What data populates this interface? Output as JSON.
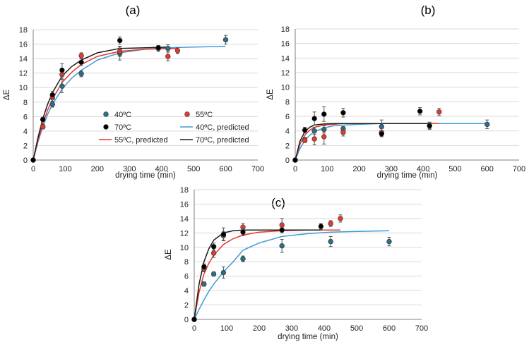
{
  "colors": {
    "c40": "#2e6e86",
    "c55": "#e23a2c",
    "c70": "#000000",
    "c40_line": "#3f9bd8",
    "c55_line": "#e8362b",
    "c70_line": "#1a1a1a"
  },
  "chart_data": [
    {
      "type": "scatter",
      "panel_label": "(a)",
      "title": "",
      "xlabel": "drying time (min)",
      "ylabel": "ΔE",
      "xlim": [
        0,
        700
      ],
      "ylim": [
        0,
        18
      ],
      "xticks": [
        0,
        100,
        200,
        300,
        400,
        500,
        600,
        700
      ],
      "yticks": [
        0,
        2,
        4,
        6,
        8,
        10,
        12,
        14,
        16,
        18
      ],
      "grid": true,
      "legend": {
        "placement": "center-right",
        "entries": [
          "40ºC",
          "55ºC",
          "70ºC",
          "40ºC, predicted",
          "55ºC, predicted",
          "70ºC, predicted"
        ]
      },
      "series": [
        {
          "name": "40ºC",
          "kind": "points",
          "x": [
            0,
            30,
            60,
            90,
            150,
            270,
            390,
            420,
            600
          ],
          "values": [
            0,
            4.6,
            7.7,
            10.2,
            11.9,
            14.7,
            15.4,
            15.4,
            16.6
          ],
          "err": [
            0,
            0.3,
            0.4,
            0.9,
            0.4,
            0.9,
            0.4,
            0.5,
            0.6
          ]
        },
        {
          "name": "55ºC",
          "kind": "points",
          "x": [
            0,
            30,
            60,
            90,
            150,
            270,
            420,
            450
          ],
          "values": [
            0,
            4.6,
            8.6,
            11.8,
            14.4,
            15.0,
            14.3,
            15.1
          ],
          "err": [
            0,
            0.3,
            0.5,
            0.6,
            0.4,
            0.7,
            0.6,
            0.4
          ]
        },
        {
          "name": "70ºC",
          "kind": "points",
          "x": [
            0,
            30,
            60,
            90,
            150,
            270,
            390
          ],
          "values": [
            0,
            5.6,
            9.0,
            12.4,
            13.5,
            16.5,
            15.5
          ],
          "err": [
            0,
            0.3,
            0.5,
            0.9,
            0.5,
            0.5,
            0.3
          ]
        },
        {
          "name": "40ºC, predicted",
          "kind": "line",
          "x": [
            0,
            15,
            30,
            45,
            60,
            90,
            120,
            150,
            200,
            270,
            350,
            420,
            500,
            600
          ],
          "values": [
            0,
            2.5,
            4.6,
            6.3,
            7.7,
            9.8,
            11.3,
            12.4,
            13.8,
            14.8,
            15.3,
            15.5,
            15.6,
            15.7
          ]
        },
        {
          "name": "55ºC, predicted",
          "kind": "line",
          "x": [
            0,
            15,
            30,
            45,
            60,
            90,
            120,
            150,
            200,
            270,
            350,
            450
          ],
          "values": [
            0,
            2.7,
            5.0,
            6.9,
            8.4,
            10.7,
            12.1,
            13.2,
            14.3,
            15.0,
            15.3,
            15.4
          ]
        },
        {
          "name": "70ºC, predicted",
          "kind": "line",
          "x": [
            0,
            15,
            30,
            45,
            60,
            90,
            120,
            150,
            200,
            270,
            350,
            420
          ],
          "values": [
            0,
            3.1,
            5.7,
            7.7,
            9.3,
            11.6,
            12.9,
            13.8,
            14.8,
            15.4,
            15.5,
            15.6
          ]
        }
      ]
    },
    {
      "type": "scatter",
      "panel_label": "(b)",
      "title": "",
      "xlabel": "drying time (min)",
      "ylabel": "ΔE",
      "xlim": [
        0,
        700
      ],
      "ylim": [
        0,
        18
      ],
      "xticks": [
        0,
        100,
        200,
        300,
        400,
        500,
        600,
        700
      ],
      "yticks": [
        0,
        2,
        4,
        6,
        8,
        10,
        12,
        14,
        16,
        18
      ],
      "grid": true,
      "series": [
        {
          "name": "40ºC",
          "kind": "points",
          "x": [
            0,
            30,
            60,
            90,
            150,
            270,
            600
          ],
          "values": [
            0,
            2.8,
            4.0,
            4.2,
            4.3,
            4.6,
            4.9
          ],
          "err": [
            0,
            0.3,
            0.5,
            0.5,
            0.3,
            0.9,
            0.6
          ]
        },
        {
          "name": "55ºC",
          "kind": "points",
          "x": [
            0,
            30,
            60,
            90,
            150,
            270,
            420,
            450
          ],
          "values": [
            0,
            2.7,
            2.9,
            3.2,
            3.8,
            3.8,
            4.7,
            6.6
          ],
          "err": [
            0,
            0.3,
            0.8,
            1.0,
            0.5,
            0.5,
            0.5,
            0.5
          ]
        },
        {
          "name": "70ºC",
          "kind": "points",
          "x": [
            0,
            30,
            60,
            90,
            150,
            270,
            390,
            420
          ],
          "values": [
            0,
            4.1,
            5.7,
            6.3,
            6.5,
            3.6,
            6.7,
            4.7
          ],
          "err": [
            0,
            0.4,
            0.9,
            1.0,
            0.6,
            0.4,
            0.5,
            0.4
          ]
        },
        {
          "name": "40ºC, predicted",
          "kind": "line",
          "x": [
            0,
            15,
            30,
            45,
            60,
            90,
            120,
            150,
            200,
            270,
            400,
            600
          ],
          "values": [
            0,
            1.6,
            2.7,
            3.4,
            3.9,
            4.4,
            4.7,
            4.8,
            4.9,
            5.0,
            5.0,
            5.0
          ]
        },
        {
          "name": "55ºC, predicted",
          "kind": "line",
          "x": [
            0,
            15,
            30,
            45,
            60,
            90,
            120,
            150,
            200,
            270,
            450
          ],
          "values": [
            0,
            2.2,
            3.4,
            4.1,
            4.5,
            4.8,
            4.9,
            5.0,
            5.0,
            5.0,
            5.0
          ]
        },
        {
          "name": "70ºC, predicted",
          "kind": "line",
          "x": [
            0,
            15,
            30,
            45,
            60,
            90,
            120,
            150,
            200,
            270,
            420
          ],
          "values": [
            0,
            2.6,
            3.9,
            4.5,
            4.8,
            4.95,
            5.0,
            5.0,
            5.0,
            5.0,
            5.0
          ]
        }
      ]
    },
    {
      "type": "scatter",
      "panel_label": "(c)",
      "title": "",
      "xlabel": "drying time (min)",
      "ylabel": "ΔE",
      "xlim": [
        0,
        700
      ],
      "ylim": [
        0,
        18
      ],
      "xticks": [
        0,
        100,
        200,
        300,
        400,
        500,
        600,
        700
      ],
      "yticks": [
        0,
        2,
        4,
        6,
        8,
        10,
        12,
        14,
        16,
        18
      ],
      "grid": true,
      "series": [
        {
          "name": "40ºC",
          "kind": "points",
          "x": [
            0,
            30,
            60,
            90,
            150,
            270,
            420,
            600
          ],
          "values": [
            0,
            4.9,
            6.3,
            6.5,
            8.4,
            10.2,
            10.8,
            10.8
          ],
          "err": [
            0,
            0.3,
            0.3,
            0.8,
            0.4,
            0.9,
            0.7,
            0.6
          ]
        },
        {
          "name": "55ºC",
          "kind": "points",
          "x": [
            0,
            30,
            60,
            90,
            150,
            270,
            420,
            450
          ],
          "values": [
            0,
            7.0,
            9.2,
            11.6,
            12.8,
            13.1,
            13.3,
            14.0
          ],
          "err": [
            0,
            0.4,
            0.6,
            0.6,
            0.5,
            0.9,
            0.4,
            0.5
          ]
        },
        {
          "name": "70ºC",
          "kind": "points",
          "x": [
            0,
            30,
            60,
            90,
            150,
            270,
            390
          ],
          "values": [
            0,
            7.3,
            10.1,
            11.8,
            12.1,
            12.4,
            12.9
          ],
          "err": [
            0,
            0.4,
            0.5,
            0.9,
            0.5,
            0.4,
            0.4
          ]
        },
        {
          "name": "40ºC, predicted",
          "kind": "line",
          "x": [
            0,
            15,
            30,
            45,
            60,
            90,
            120,
            150,
            200,
            270,
            350,
            420,
            500,
            600
          ],
          "values": [
            0,
            1.4,
            2.7,
            3.9,
            4.9,
            6.6,
            8.0,
            9.6,
            10.6,
            11.5,
            11.9,
            12.1,
            12.2,
            12.3
          ]
        },
        {
          "name": "55ºC, predicted",
          "kind": "line",
          "x": [
            0,
            15,
            30,
            45,
            60,
            90,
            120,
            150,
            200,
            270,
            350,
            450
          ],
          "values": [
            0,
            3.8,
            6.3,
            7.8,
            8.9,
            10.4,
            11.2,
            11.7,
            12.1,
            12.3,
            12.4,
            12.4
          ]
        },
        {
          "name": "70ºC, predicted",
          "kind": "line",
          "x": [
            0,
            15,
            30,
            45,
            60,
            90,
            120,
            150,
            200,
            270,
            390
          ],
          "values": [
            0,
            4.9,
            8.0,
            9.8,
            11.0,
            12.0,
            12.3,
            12.4,
            12.4,
            12.4,
            12.4
          ]
        }
      ]
    }
  ]
}
